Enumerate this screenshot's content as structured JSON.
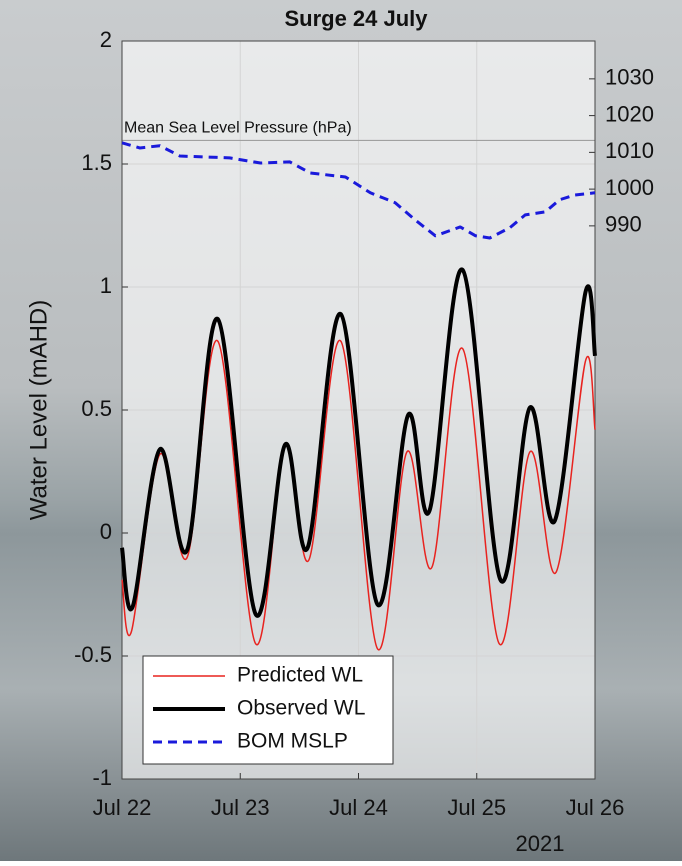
{
  "chart_data": {
    "type": "line",
    "title": "Surge 24 July",
    "ylabel": "Water Level (mAHD)",
    "x_year_label": "2021",
    "xlim": [
      0,
      4
    ],
    "xticks": [
      {
        "value": 0,
        "label": "Jul 22"
      },
      {
        "value": 1,
        "label": "Jul 23"
      },
      {
        "value": 2,
        "label": "Jul 24"
      },
      {
        "value": 3,
        "label": "Jul 25"
      },
      {
        "value": 4,
        "label": "Jul 26"
      }
    ],
    "ylim": [
      -1,
      2
    ],
    "yticks": [
      2,
      1.5,
      1,
      0.5,
      0,
      -0.5,
      -1
    ],
    "y2lim": [
      839.5,
      1040.3
    ],
    "y2ticks": [
      990,
      1000,
      1010,
      1020,
      1030
    ],
    "grid": true,
    "legend": "lower left",
    "hlines": [
      {
        "value": 1013.25,
        "label": "Mean Sea Level Pressure (hPa)",
        "axis": "y2",
        "color": "#a0a0a0"
      }
    ],
    "series": [
      {
        "name": "Predicted WL",
        "color": "#e8231f",
        "style": "smooth",
        "width": 1.5,
        "x": [
          0,
          0.08,
          0.32,
          0.55,
          0.81,
          1.13,
          1.38,
          1.58,
          1.85,
          2.16,
          2.41,
          2.62,
          2.88,
          3.19,
          3.45,
          3.67,
          3.92,
          4.0
        ],
        "values": [
          -0.19,
          -0.4,
          0.32,
          -0.1,
          0.78,
          -0.45,
          0.36,
          -0.11,
          0.78,
          -0.47,
          0.33,
          -0.14,
          0.75,
          -0.45,
          0.33,
          -0.16,
          0.7,
          0.42
        ]
      },
      {
        "name": "Observed WL",
        "color": "#000000",
        "style": "smooth",
        "width": 4,
        "x": [
          0,
          0.09,
          0.32,
          0.55,
          0.81,
          1.13,
          1.38,
          1.57,
          1.85,
          2.16,
          2.42,
          2.6,
          2.88,
          3.2,
          3.45,
          3.66,
          3.92,
          4.0
        ],
        "values": [
          -0.06,
          -0.3,
          0.34,
          -0.07,
          0.87,
          -0.33,
          0.36,
          -0.06,
          0.89,
          -0.29,
          0.48,
          0.09,
          1.07,
          -0.19,
          0.51,
          0.05,
          0.98,
          0.72
        ]
      },
      {
        "name": "BOM MSLP",
        "color": "#1a1adb",
        "style": "dashed",
        "width": 3,
        "axis": "y2",
        "x": [
          0,
          0.15,
          0.32,
          0.49,
          0.91,
          1.17,
          1.42,
          1.59,
          1.89,
          2.1,
          2.31,
          2.48,
          2.65,
          2.86,
          2.99,
          3.11,
          3.28,
          3.41,
          3.58,
          3.7,
          3.83,
          4.0
        ],
        "values": [
          1012.6,
          1011.2,
          1011.8,
          1009.0,
          1008.5,
          1007.1,
          1007.4,
          1004.4,
          1003.3,
          999.0,
          996.3,
          991.6,
          987.3,
          989.7,
          987.3,
          986.7,
          989.5,
          993.0,
          993.8,
          997.1,
          998.4,
          999.0
        ]
      }
    ]
  }
}
